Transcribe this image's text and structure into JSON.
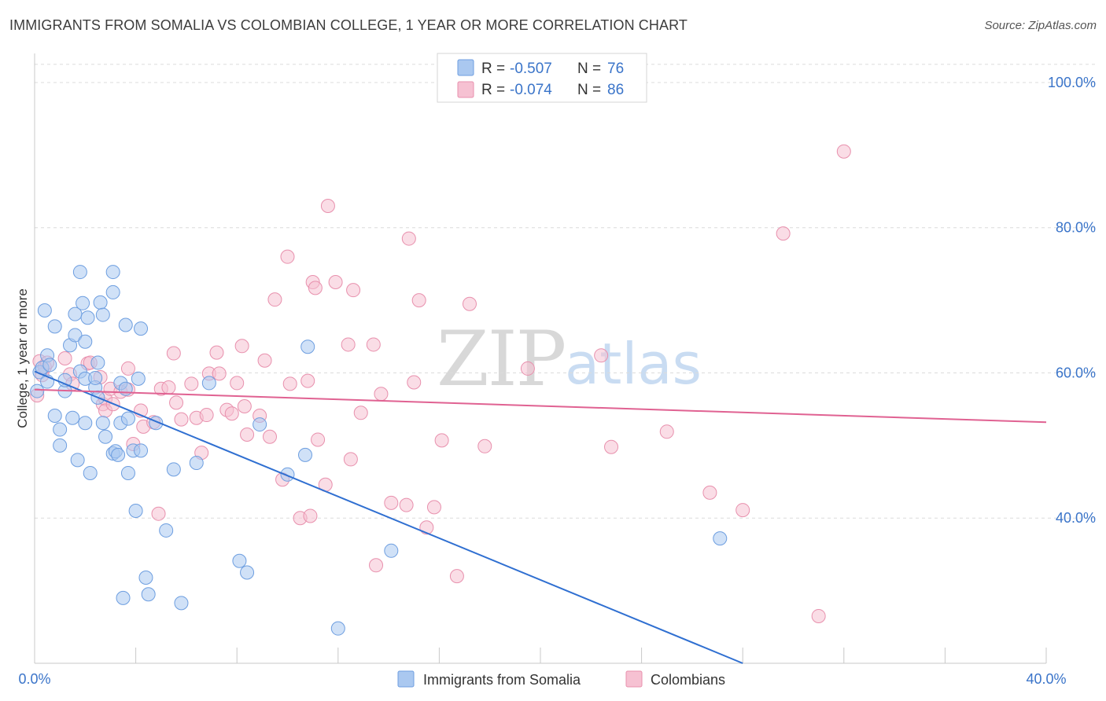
{
  "header": {
    "title": "IMMIGRANTS FROM SOMALIA VS COLOMBIAN COLLEGE, 1 YEAR OR MORE CORRELATION CHART",
    "source": "Source: ZipAtlas.com"
  },
  "watermark": {
    "zip": "ZIP",
    "atlas": "atlas"
  },
  "legend_top": {
    "rows": [
      {
        "r_label": "R =",
        "r_value": "-0.507",
        "n_label": "N =",
        "n_value": "76"
      },
      {
        "r_label": "R =",
        "r_value": "-0.074",
        "n_label": "N =",
        "n_value": "86"
      }
    ]
  },
  "colors": {
    "blue_fill": "#aac8f0",
    "blue_stroke": "#6d9ee0",
    "blue_line": "#2f6fd1",
    "pink_fill": "#f6c1d2",
    "pink_stroke": "#e890ad",
    "pink_line": "#e06292",
    "grid": "#dcdcdc",
    "axis_label": "#3a74c9"
  },
  "chart_data": {
    "type": "scatter",
    "title": "IMMIGRANTS FROM SOMALIA VS COLOMBIAN COLLEGE, 1 YEAR OR MORE CORRELATION CHART",
    "xlabel": "",
    "ylabel": "College, 1 year or more",
    "xlim": [
      0,
      40
    ],
    "ylim": [
      20,
      104
    ],
    "x_tick_labels": [
      "0.0%",
      "40.0%"
    ],
    "y_ticks": [
      40,
      60,
      80,
      100
    ],
    "y_tick_labels": [
      "40.0%",
      "60.0%",
      "80.0%",
      "100.0%"
    ],
    "grid": true,
    "legend_position": "top-center",
    "series": [
      {
        "name": "Immigrants from Somalia",
        "color": "#aac8f0",
        "R": -0.507,
        "N": 76,
        "trend": {
          "x": [
            0,
            28
          ],
          "y": [
            60.2,
            20.0
          ]
        },
        "points": [
          [
            0.1,
            57.5
          ],
          [
            0.2,
            60.1
          ],
          [
            0.3,
            60.7
          ],
          [
            0.4,
            68.6
          ],
          [
            0.5,
            58.8
          ],
          [
            0.5,
            62.4
          ],
          [
            0.6,
            61.1
          ],
          [
            0.8,
            66.4
          ],
          [
            0.8,
            54.1
          ],
          [
            1.0,
            52.2
          ],
          [
            1.0,
            50.0
          ],
          [
            1.2,
            57.5
          ],
          [
            1.2,
            59.0
          ],
          [
            1.4,
            63.8
          ],
          [
            1.5,
            53.8
          ],
          [
            1.6,
            68.1
          ],
          [
            1.6,
            65.2
          ],
          [
            1.7,
            48.0
          ],
          [
            1.8,
            73.9
          ],
          [
            1.8,
            60.2
          ],
          [
            1.9,
            69.6
          ],
          [
            2.0,
            59.2
          ],
          [
            2.0,
            53.1
          ],
          [
            2.0,
            64.3
          ],
          [
            2.1,
            67.6
          ],
          [
            2.2,
            46.2
          ],
          [
            2.4,
            58.0
          ],
          [
            2.4,
            59.3
          ],
          [
            2.5,
            56.6
          ],
          [
            2.5,
            61.4
          ],
          [
            2.6,
            69.7
          ],
          [
            2.7,
            68.0
          ],
          [
            2.7,
            53.1
          ],
          [
            2.8,
            51.2
          ],
          [
            3.1,
            73.9
          ],
          [
            3.1,
            71.1
          ],
          [
            3.1,
            48.9
          ],
          [
            3.2,
            49.2
          ],
          [
            3.3,
            48.7
          ],
          [
            3.4,
            58.6
          ],
          [
            3.4,
            53.1
          ],
          [
            3.5,
            29.0
          ],
          [
            3.6,
            57.8
          ],
          [
            3.6,
            66.6
          ],
          [
            3.7,
            53.7
          ],
          [
            3.7,
            46.2
          ],
          [
            3.9,
            49.3
          ],
          [
            4.0,
            41.0
          ],
          [
            4.1,
            59.2
          ],
          [
            4.2,
            49.3
          ],
          [
            4.2,
            66.1
          ],
          [
            4.4,
            31.8
          ],
          [
            4.5,
            29.5
          ],
          [
            4.8,
            53.1
          ],
          [
            5.2,
            38.3
          ],
          [
            5.5,
            46.7
          ],
          [
            5.8,
            28.3
          ],
          [
            6.4,
            47.6
          ],
          [
            6.9,
            58.6
          ],
          [
            8.1,
            34.1
          ],
          [
            8.4,
            32.5
          ],
          [
            8.9,
            52.9
          ],
          [
            10.0,
            46.0
          ],
          [
            10.7,
            48.7
          ],
          [
            10.8,
            63.6
          ],
          [
            12.0,
            24.8
          ],
          [
            14.1,
            35.5
          ],
          [
            27.1,
            37.2
          ]
        ]
      },
      {
        "name": "Colombians",
        "color": "#f6c1d2",
        "R": -0.074,
        "N": 86,
        "trend": {
          "x": [
            0,
            40
          ],
          "y": [
            57.7,
            53.2
          ]
        },
        "points": [
          [
            0.1,
            56.9
          ],
          [
            0.2,
            61.6
          ],
          [
            0.3,
            59.7
          ],
          [
            0.4,
            60.8
          ],
          [
            0.5,
            61.4
          ],
          [
            1.2,
            62.0
          ],
          [
            1.4,
            59.8
          ],
          [
            1.5,
            58.5
          ],
          [
            2.1,
            61.3
          ],
          [
            2.2,
            61.4
          ],
          [
            2.6,
            59.4
          ],
          [
            2.7,
            55.7
          ],
          [
            2.8,
            56.4
          ],
          [
            2.8,
            54.8
          ],
          [
            3.0,
            57.8
          ],
          [
            3.1,
            55.7
          ],
          [
            3.4,
            57.4
          ],
          [
            3.7,
            60.6
          ],
          [
            3.7,
            57.7
          ],
          [
            3.9,
            50.2
          ],
          [
            4.2,
            54.8
          ],
          [
            4.3,
            52.6
          ],
          [
            4.7,
            53.2
          ],
          [
            4.9,
            40.6
          ],
          [
            5.0,
            57.8
          ],
          [
            5.3,
            58.0
          ],
          [
            5.5,
            62.7
          ],
          [
            5.6,
            55.9
          ],
          [
            5.8,
            53.6
          ],
          [
            6.2,
            58.5
          ],
          [
            6.4,
            53.8
          ],
          [
            6.6,
            49.0
          ],
          [
            6.8,
            54.2
          ],
          [
            6.9,
            59.9
          ],
          [
            7.2,
            62.8
          ],
          [
            7.3,
            59.9
          ],
          [
            7.6,
            54.9
          ],
          [
            7.8,
            54.4
          ],
          [
            8.0,
            58.6
          ],
          [
            8.2,
            63.7
          ],
          [
            8.3,
            55.4
          ],
          [
            8.4,
            51.5
          ],
          [
            8.9,
            54.1
          ],
          [
            9.1,
            61.7
          ],
          [
            9.3,
            51.2
          ],
          [
            9.5,
            70.1
          ],
          [
            9.8,
            45.3
          ],
          [
            10.0,
            76.0
          ],
          [
            10.1,
            58.5
          ],
          [
            10.5,
            40.0
          ],
          [
            10.8,
            58.9
          ],
          [
            10.9,
            40.3
          ],
          [
            11.0,
            72.5
          ],
          [
            11.1,
            71.7
          ],
          [
            11.2,
            50.8
          ],
          [
            11.5,
            44.6
          ],
          [
            11.6,
            83.0
          ],
          [
            11.9,
            72.5
          ],
          [
            12.4,
            63.9
          ],
          [
            12.5,
            48.1
          ],
          [
            12.6,
            71.4
          ],
          [
            12.9,
            54.5
          ],
          [
            13.4,
            63.9
          ],
          [
            13.5,
            33.5
          ],
          [
            13.7,
            57.1
          ],
          [
            14.1,
            42.1
          ],
          [
            14.7,
            41.8
          ],
          [
            14.8,
            78.5
          ],
          [
            15.0,
            58.7
          ],
          [
            15.2,
            70.0
          ],
          [
            15.5,
            38.7
          ],
          [
            15.8,
            41.5
          ],
          [
            16.1,
            50.7
          ],
          [
            16.7,
            32.0
          ],
          [
            17.2,
            69.5
          ],
          [
            17.8,
            49.9
          ],
          [
            19.5,
            60.6
          ],
          [
            22.4,
            62.4
          ],
          [
            22.8,
            49.8
          ],
          [
            25.0,
            51.9
          ],
          [
            26.7,
            43.5
          ],
          [
            28.0,
            41.1
          ],
          [
            29.6,
            79.2
          ],
          [
            31.0,
            26.5
          ],
          [
            32.0,
            90.5
          ]
        ]
      }
    ]
  },
  "legend_bottom": {
    "items": [
      {
        "label": "Immigrants from Somalia"
      },
      {
        "label": "Colombians"
      }
    ]
  }
}
